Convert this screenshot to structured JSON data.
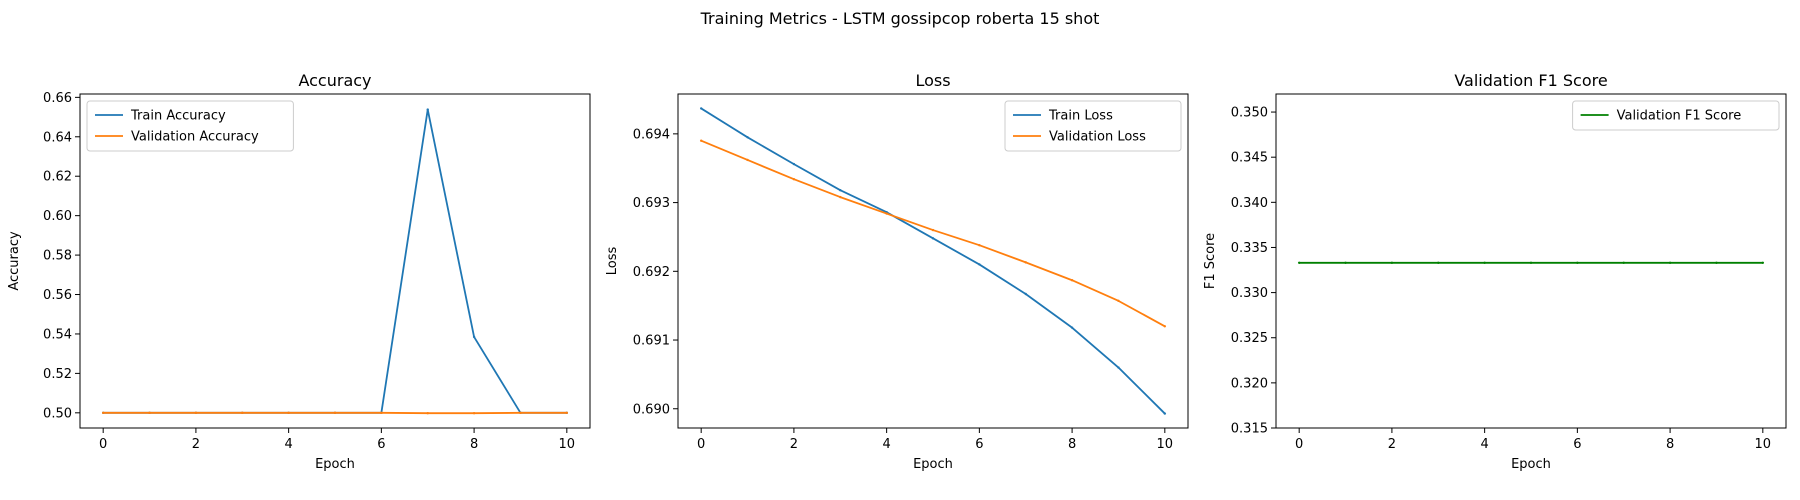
{
  "figure": {
    "suptitle": "Training Metrics - LSTM gossipcop roberta 15 shot"
  },
  "chart_data": [
    {
      "type": "line",
      "title": "Accuracy",
      "xlabel": "Epoch",
      "ylabel": "Accuracy",
      "xlim": [
        -0.5,
        10.5
      ],
      "ylim": [
        0.4923,
        0.6617
      ],
      "xticks": [
        0,
        2,
        4,
        6,
        8,
        10
      ],
      "yticks": [
        0.5,
        0.52,
        0.54,
        0.56,
        0.58,
        0.6,
        0.62,
        0.64,
        0.66
      ],
      "ytick_labels": [
        "0.50",
        "0.52",
        "0.54",
        "0.56",
        "0.58",
        "0.60",
        "0.62",
        "0.64",
        "0.66"
      ],
      "legend_position": "upper-left",
      "grid": false,
      "x": [
        0,
        1,
        2,
        3,
        4,
        5,
        6,
        7,
        8,
        9,
        10
      ],
      "series": [
        {
          "name": "Train Accuracy",
          "color": "#1f77b4",
          "values": [
            0.5,
            0.5,
            0.5,
            0.5,
            0.5,
            0.5,
            0.5,
            0.6538,
            0.5385,
            0.5,
            0.5
          ]
        },
        {
          "name": "Validation Accuracy",
          "color": "#ff7f0e",
          "values": [
            0.5,
            0.5,
            0.5,
            0.5,
            0.5,
            0.5,
            0.5,
            0.4998,
            0.4998,
            0.5,
            0.5
          ]
        }
      ]
    },
    {
      "type": "line",
      "title": "Loss",
      "xlabel": "Epoch",
      "ylabel": "Loss",
      "xlim": [
        -0.5,
        10.5
      ],
      "ylim": [
        0.68972,
        0.69458
      ],
      "xticks": [
        0,
        2,
        4,
        6,
        8,
        10
      ],
      "yticks": [
        0.69,
        0.691,
        0.692,
        0.693,
        0.694
      ],
      "ytick_labels": [
        "0.690",
        "0.691",
        "0.692",
        "0.693",
        "0.694"
      ],
      "legend_position": "upper-right",
      "grid": false,
      "x": [
        0,
        1,
        2,
        3,
        4,
        5,
        6,
        7,
        8,
        9,
        10
      ],
      "series": [
        {
          "name": "Train Loss",
          "color": "#1f77b4",
          "values": [
            0.69437,
            0.69395,
            0.69356,
            0.69318,
            0.69286,
            0.69248,
            0.6921,
            0.69167,
            0.69118,
            0.6906,
            0.68993
          ]
        },
        {
          "name": "Validation Loss",
          "color": "#ff7f0e",
          "values": [
            0.6939,
            0.69362,
            0.69334,
            0.69308,
            0.69284,
            0.6926,
            0.69238,
            0.69213,
            0.69187,
            0.69157,
            0.6912
          ]
        }
      ]
    },
    {
      "type": "line",
      "title": "Validation F1 Score",
      "xlabel": "Epoch",
      "ylabel": "F1 Score",
      "xlim": [
        -0.5,
        10.5
      ],
      "ylim": [
        0.315,
        0.352
      ],
      "xticks": [
        0,
        2,
        4,
        6,
        8,
        10
      ],
      "yticks": [
        0.315,
        0.32,
        0.325,
        0.33,
        0.335,
        0.34,
        0.345,
        0.35
      ],
      "ytick_labels": [
        "0.315",
        "0.320",
        "0.325",
        "0.330",
        "0.335",
        "0.340",
        "0.345",
        "0.350"
      ],
      "legend_position": "upper-right",
      "grid": false,
      "x": [
        0,
        1,
        2,
        3,
        4,
        5,
        6,
        7,
        8,
        9,
        10
      ],
      "series": [
        {
          "name": "Validation F1 Score",
          "color": "#008000",
          "values": [
            0.3333,
            0.3333,
            0.3333,
            0.3333,
            0.3333,
            0.3333,
            0.3333,
            0.3333,
            0.3333,
            0.3333,
            0.3333
          ]
        }
      ]
    }
  ]
}
